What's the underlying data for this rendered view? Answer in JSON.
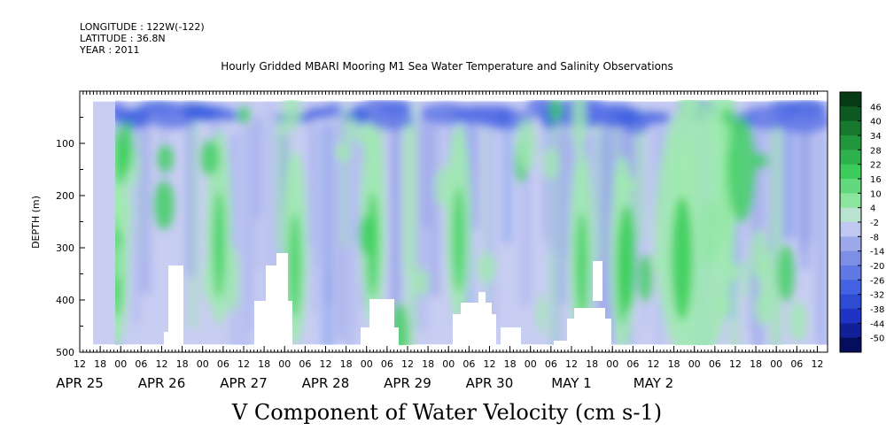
{
  "header": {
    "longitude": "LONGITUDE : 122W(-122)",
    "latitude": "LATITUDE : 36.8N",
    "year": "YEAR : 2011"
  },
  "chart_data": {
    "type": "heatmap",
    "title": "Hourly Gridded MBARI Mooring M1 Sea Water Temperature and Salinity Observations",
    "bottom_title": "V Component of Water Velocity (cm s-1)",
    "ylabel": "DEPTH (m)",
    "ylim": [
      500,
      0
    ],
    "y_ticks": [
      100,
      200,
      300,
      400,
      500
    ],
    "x_hour_labels": [
      "12",
      "18",
      "00",
      "06",
      "12",
      "18",
      "00",
      "06",
      "12",
      "18",
      "00",
      "06",
      "12",
      "18",
      "00",
      "06",
      "12",
      "18",
      "00",
      "06",
      "12",
      "18",
      "00",
      "06",
      "12",
      "18",
      "00",
      "06",
      "12",
      "18",
      "00",
      "06",
      "12",
      "18",
      "00",
      "06",
      "12"
    ],
    "x_date_labels": [
      {
        "label": "APR 25",
        "hour_index": 0
      },
      {
        "label": "APR 26",
        "hour_index": 4
      },
      {
        "label": "APR 27",
        "hour_index": 8
      },
      {
        "label": "APR 28",
        "hour_index": 12
      },
      {
        "label": "APR 29",
        "hour_index": 16
      },
      {
        "label": "APR 30",
        "hour_index": 20
      },
      {
        "label": "MAY  1",
        "hour_index": 24
      },
      {
        "label": "MAY  2",
        "hour_index": 28
      }
    ],
    "colorbar": {
      "levels": [
        46,
        40,
        34,
        28,
        22,
        16,
        10,
        4,
        -2,
        -8,
        -14,
        -20,
        -26,
        -32,
        -38,
        -44,
        -50
      ],
      "min": -50,
      "max": 50
    },
    "data_depth_range": [
      20,
      485
    ],
    "data_time_start_hour_index": 0.65,
    "palette": {
      "deep_blue": "#0a1a9a",
      "blue": "#3a5ce0",
      "light_blue": "#aab4ee",
      "neutral": "#c8cdf2",
      "light_green": "#a0eab0",
      "green": "#3ccf5c",
      "dark_green": "#0e6a22"
    },
    "mean_pattern": [
      {
        "hour_index": 1.8,
        "depth": 300,
        "sign": "positive"
      },
      {
        "hour_index": 6.8,
        "depth": 260,
        "sign": "positive"
      },
      {
        "hour_index": 10.5,
        "depth": 300,
        "sign": "positive"
      },
      {
        "hour_index": 14.3,
        "depth": 260,
        "sign": "positive"
      },
      {
        "hour_index": 18.5,
        "depth": 250,
        "sign": "positive"
      },
      {
        "hour_index": 24.5,
        "depth": 300,
        "sign": "positive"
      },
      {
        "hour_index": 26.5,
        "depth": 310,
        "sign": "positive"
      },
      {
        "hour_index": 29.5,
        "depth": 280,
        "sign": "positive"
      },
      {
        "hour_index": 31.5,
        "depth": 150,
        "sign": "positive"
      }
    ]
  }
}
